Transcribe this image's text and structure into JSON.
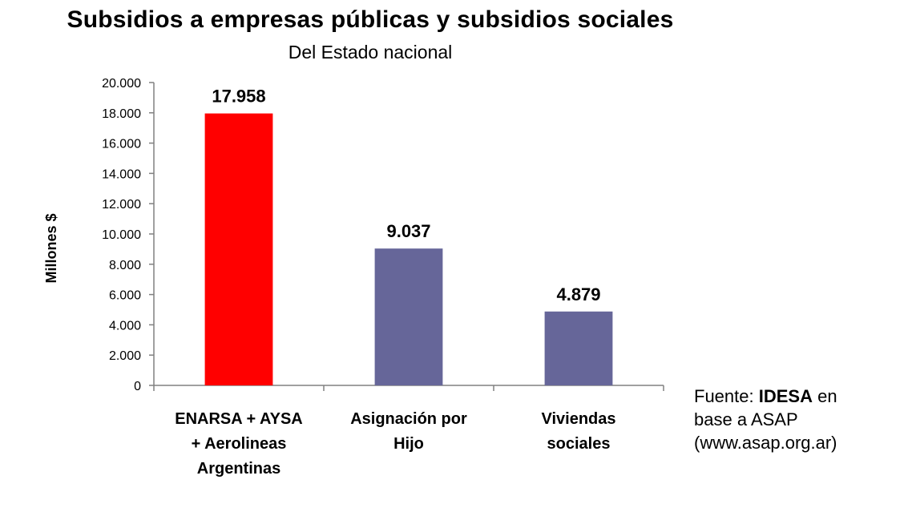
{
  "chart_data": {
    "type": "bar",
    "title": "Subsidios a empresas públicas y subsidios sociales",
    "subtitle": "Del Estado nacional",
    "ylabel": "Millones $",
    "xlabel": "",
    "ylim": [
      0,
      20000
    ],
    "y_ticks": [
      0,
      2000,
      4000,
      6000,
      8000,
      10000,
      12000,
      14000,
      16000,
      18000,
      20000
    ],
    "y_tick_labels": [
      "0",
      "2.000",
      "4.000",
      "6.000",
      "8.000",
      "10.000",
      "12.000",
      "14.000",
      "16.000",
      "18.000",
      "20.000"
    ],
    "categories": [
      [
        "ENARSA + AYSA",
        "+ Aerolineas",
        "Argentinas"
      ],
      [
        "Asignación por",
        "Hijo"
      ],
      [
        "Viviendas",
        "sociales"
      ]
    ],
    "values": [
      17958,
      9037,
      4879
    ],
    "value_labels": [
      "17.958",
      "9.037",
      "4.879"
    ],
    "bar_colors": [
      "#ff0000",
      "#666699",
      "#666699"
    ],
    "grid": false,
    "legend": "none"
  },
  "source": {
    "prefix": "Fuente: ",
    "org": "IDESA",
    "suffix": " en",
    "line2": "base a ASAP",
    "line3": "(www.asap.org.ar)"
  }
}
